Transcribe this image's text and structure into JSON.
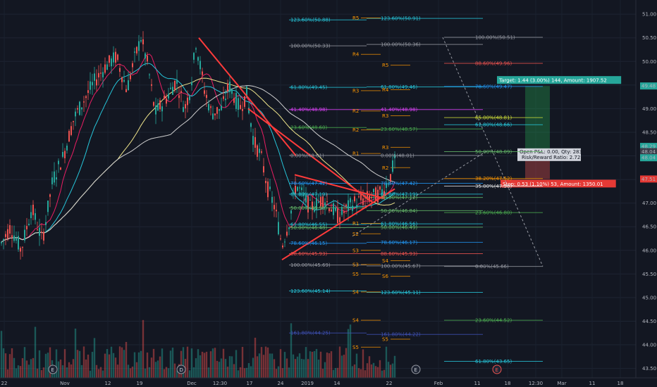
{
  "chart_data": {
    "type": "candlestick",
    "ylim": [
      43.3,
      51.3
    ],
    "y_ticks": [
      43.5,
      44.0,
      44.5,
      45.0,
      45.5,
      46.0,
      46.5,
      47.0,
      47.5,
      48.0,
      48.5,
      49.0,
      49.5,
      50.0,
      50.5,
      51.0
    ],
    "x_ticks": [
      "22",
      "Nov",
      "12",
      "19",
      "Dec",
      "12:30",
      "17",
      "24",
      "2019",
      "14",
      "22",
      "Feb",
      "11",
      "18",
      "12:30",
      "Mar",
      "11",
      "18"
    ],
    "price_badges": {
      "target": "49.48",
      "current": "48.04",
      "countdown": "48.29",
      "entry": "48.04",
      "stop": "47.51"
    },
    "position": {
      "target_label": "Target: 1.44 (3.00%) 144, Amount: 1907.52",
      "stop_label": "Stop: 0.53 (1.10%) 53, Amount: 1350.01",
      "pnl_label": "Open P&L: 0.00, Qty: 283",
      "rr_label": "Risk/Reward Ratio: 2.72",
      "entry": 48.04,
      "target": 49.48,
      "stop": 47.51
    },
    "fib_left": [
      {
        "text": "123.60%(50.88)",
        "price": 50.88
      },
      {
        "text": "100.00%(50.33)",
        "price": 50.33
      },
      {
        "text": "61.80%(49.45)",
        "price": 49.45
      },
      {
        "text": "41.40%(48.98)",
        "price": 48.98
      },
      {
        "text": "23.60%(48.60)",
        "price": 48.6
      },
      {
        "text": "0.00%(48.01)",
        "price": 48.01
      },
      {
        "text": "78.60%(47.42)",
        "price": 47.42
      },
      {
        "text": "61.80%(47.19)",
        "price": 47.19
      },
      {
        "text": "50.00%(46.90)",
        "price": 46.9
      },
      {
        "text": "61.80%(46.55)",
        "price": 46.55
      },
      {
        "text": "50.00%(46.48)",
        "price": 46.48
      },
      {
        "text": "78.60%(46.15)",
        "price": 46.15
      },
      {
        "text": "88.60%(45.93)",
        "price": 45.93
      },
      {
        "text": "100.00%(45.69)",
        "price": 45.69
      },
      {
        "text": "123.60%(45.14)",
        "price": 45.14
      },
      {
        "text": "161.80%(44.25)",
        "price": 44.25
      }
    ],
    "fib_right": [
      {
        "text": "123.60%(50.91)",
        "price": 50.91
      },
      {
        "text": "100.00%(50.36)",
        "price": 50.36
      },
      {
        "text": "61.80%(49.46)",
        "price": 49.46
      },
      {
        "text": "41.40%(48.98)",
        "price": 48.98
      },
      {
        "text": "23.60%(48.57)",
        "price": 48.57
      },
      {
        "text": "0.00%(48.01)",
        "price": 48.01
      },
      {
        "text": "78.60%(47.42)",
        "price": 47.42
      },
      {
        "text": "61.80%(47.19)",
        "price": 47.19
      },
      {
        "text": "50.00%(47.12)",
        "price": 47.12
      },
      {
        "text": "50.00%(46.84)",
        "price": 46.84
      },
      {
        "text": "61.80%(46.56)",
        "price": 46.56
      },
      {
        "text": "50.00%(46.49)",
        "price": 46.49
      },
      {
        "text": "78.60%(46.17)",
        "price": 46.17
      },
      {
        "text": "88.60%(45.93)",
        "price": 45.93
      },
      {
        "text": "100.00%(45.67)",
        "price": 45.67
      },
      {
        "text": "123.60%(45.11)",
        "price": 45.11
      },
      {
        "text": "161.80%(44.22)",
        "price": 44.22
      }
    ],
    "fib_far": [
      {
        "text": "100.00%(50.51)",
        "price": 50.51
      },
      {
        "text": "88.60%(49.96)",
        "price": 49.96
      },
      {
        "text": "78.60%(49.47)",
        "price": 49.47
      },
      {
        "text": "65.00%(48.81)",
        "price": 48.81
      },
      {
        "text": "61.80%(48.66)",
        "price": 48.66
      },
      {
        "text": "50.00%(48.09)",
        "price": 48.09
      },
      {
        "text": "38.20%(47.52)",
        "price": 47.52
      },
      {
        "text": "35.00%(47.36)",
        "price": 47.36
      },
      {
        "text": "23.60%(46.80)",
        "price": 46.8
      },
      {
        "text": "0.00%(45.66)",
        "price": 45.66
      },
      {
        "text": "23.60%(44.52)",
        "price": 44.52
      },
      {
        "text": "61.80%(43.65)",
        "price": 43.65
      }
    ],
    "pivots": [
      {
        "label": "R5",
        "price": 50.92
      },
      {
        "label": "R4",
        "price": 50.15
      },
      {
        "label": "R5",
        "price": 49.92
      },
      {
        "label": "R3",
        "price": 49.38
      },
      {
        "label": "R4",
        "price": 49.4
      },
      {
        "label": "R2",
        "price": 48.95
      },
      {
        "label": "R3",
        "price": 48.85
      },
      {
        "label": "R2",
        "price": 48.55
      },
      {
        "label": "R1",
        "price": 48.05
      },
      {
        "label": "R3",
        "price": 48.18
      },
      {
        "label": "R2",
        "price": 47.75
      },
      {
        "label": "R1",
        "price": 46.57
      },
      {
        "label": "S2",
        "price": 46.35
      },
      {
        "label": "S3",
        "price": 46.0
      },
      {
        "label": "S4",
        "price": 45.78
      },
      {
        "label": "S3",
        "price": 45.7
      },
      {
        "label": "S5",
        "price": 45.5
      },
      {
        "label": "S4",
        "price": 45.12
      },
      {
        "label": "S4",
        "price": 44.52
      },
      {
        "label": "S5",
        "price": 43.95
      },
      {
        "label": "S5",
        "price": 44.12
      },
      {
        "label": "S6",
        "price": 45.45
      }
    ],
    "events": [
      "E",
      "D",
      "E",
      "E"
    ]
  }
}
